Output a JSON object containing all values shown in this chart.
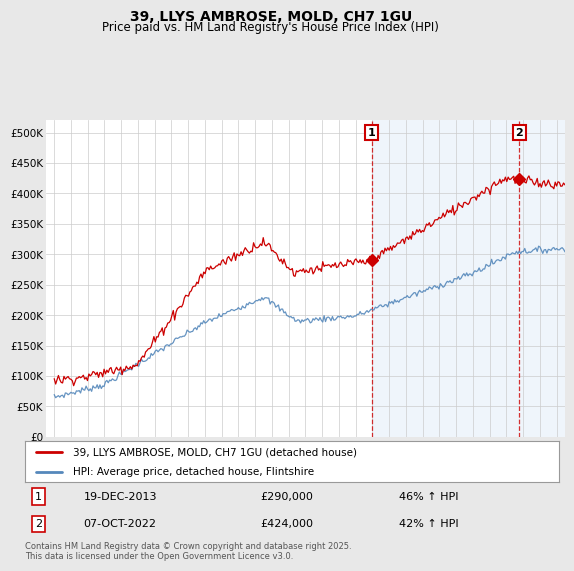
{
  "title": "39, LLYS AMBROSE, MOLD, CH7 1GU",
  "subtitle": "Price paid vs. HM Land Registry's House Price Index (HPI)",
  "legend_line1": "39, LLYS AMBROSE, MOLD, CH7 1GU (detached house)",
  "legend_line2": "HPI: Average price, detached house, Flintshire",
  "annotation1_label": "1",
  "annotation1_date": "19-DEC-2013",
  "annotation1_price": "£290,000",
  "annotation1_hpi": "46% ↑ HPI",
  "annotation2_label": "2",
  "annotation2_date": "07-OCT-2022",
  "annotation2_price": "£424,000",
  "annotation2_hpi": "42% ↑ HPI",
  "footer": "Contains HM Land Registry data © Crown copyright and database right 2025.\nThis data is licensed under the Open Government Licence v3.0.",
  "ylim": [
    0,
    520000
  ],
  "yticks": [
    0,
    50000,
    100000,
    150000,
    200000,
    250000,
    300000,
    350000,
    400000,
    450000,
    500000
  ],
  "ytick_labels": [
    "£0",
    "£50K",
    "£100K",
    "£150K",
    "£200K",
    "£250K",
    "£300K",
    "£350K",
    "£400K",
    "£450K",
    "£500K"
  ],
  "red_color": "#cc0000",
  "blue_color": "#5588bb",
  "blue_fill_color": "#ddeeff",
  "vline_color": "#cc0000",
  "annotation_box_color": "#cc0000",
  "plot_bg_color": "#ffffff",
  "fig_bg_color": "#e8e8e8",
  "marker1_x": 2013.96,
  "marker1_y": 290000,
  "marker2_x": 2022.77,
  "marker2_y": 424000,
  "vline1_x": 2013.96,
  "vline2_x": 2022.77,
  "xlim": [
    1994.5,
    2025.5
  ],
  "xticks": [
    1995,
    1996,
    1997,
    1998,
    1999,
    2000,
    2001,
    2002,
    2003,
    2004,
    2005,
    2006,
    2007,
    2008,
    2009,
    2010,
    2011,
    2012,
    2013,
    2014,
    2015,
    2016,
    2017,
    2018,
    2019,
    2020,
    2021,
    2022,
    2023,
    2024,
    2025
  ]
}
